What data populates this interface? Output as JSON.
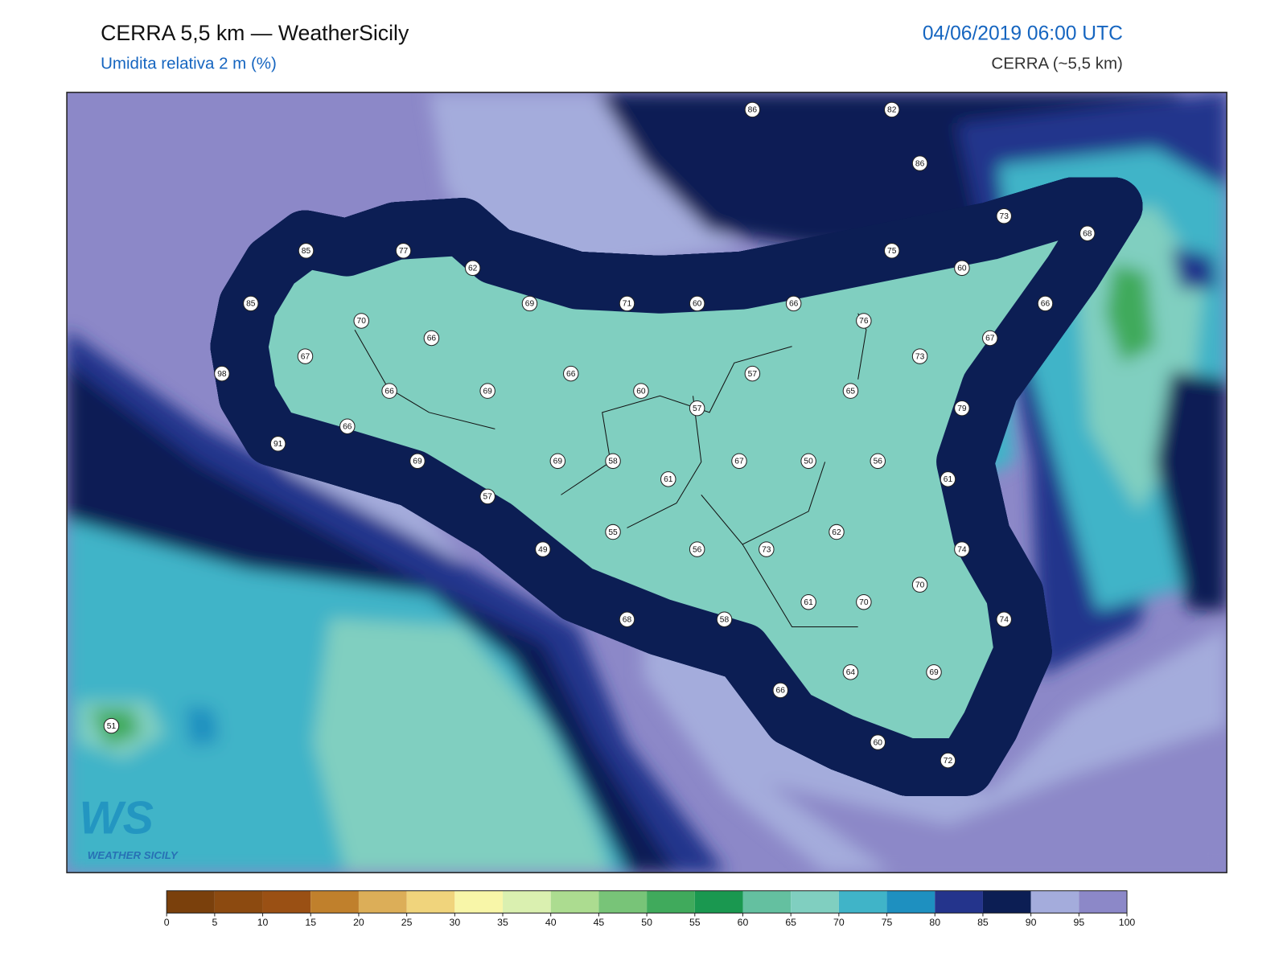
{
  "header": {
    "title": "CERRA 5,5 km — WeatherSicily",
    "subtitle": "Umidita relativa 2 m (%)",
    "datetime": "04/06/2019 06:00 UTC",
    "model": "CERRA (~5,5 km)"
  },
  "logo": {
    "mark": "WS",
    "text": "WEATHER SICILY"
  },
  "stations": [
    86,
    82,
    86,
    73,
    68,
    85,
    77,
    62,
    75,
    60,
    85,
    69,
    71,
    60,
    66,
    66,
    70,
    76,
    66,
    67,
    67,
    73,
    98,
    66,
    57,
    69,
    66,
    60,
    65,
    57,
    79,
    66,
    91,
    69,
    69,
    58,
    67,
    50,
    56,
    61,
    61,
    57,
    55,
    62,
    49,
    56,
    73,
    74,
    70,
    61,
    70,
    74,
    68,
    58,
    66,
    64,
    69,
    51,
    60,
    72
  ],
  "colorbar": {
    "ticks": [
      0,
      5,
      10,
      15,
      20,
      25,
      30,
      35,
      40,
      45,
      50,
      55,
      60,
      65,
      70,
      75,
      80,
      85,
      90,
      95,
      100
    ],
    "colors": [
      "#7a400c",
      "#8c4a10",
      "#9a5014",
      "#c0802c",
      "#dcae58",
      "#f0d47c",
      "#f8f6a8",
      "#daf0b0",
      "#acdc90",
      "#78c478",
      "#40aa5c",
      "#1a9850",
      "#64c0a0",
      "#80cfc0",
      "#40b4c8",
      "#1e90c0",
      "#24348c",
      "#0c1e54",
      "#a4acdc",
      "#8c88c8"
    ]
  }
}
